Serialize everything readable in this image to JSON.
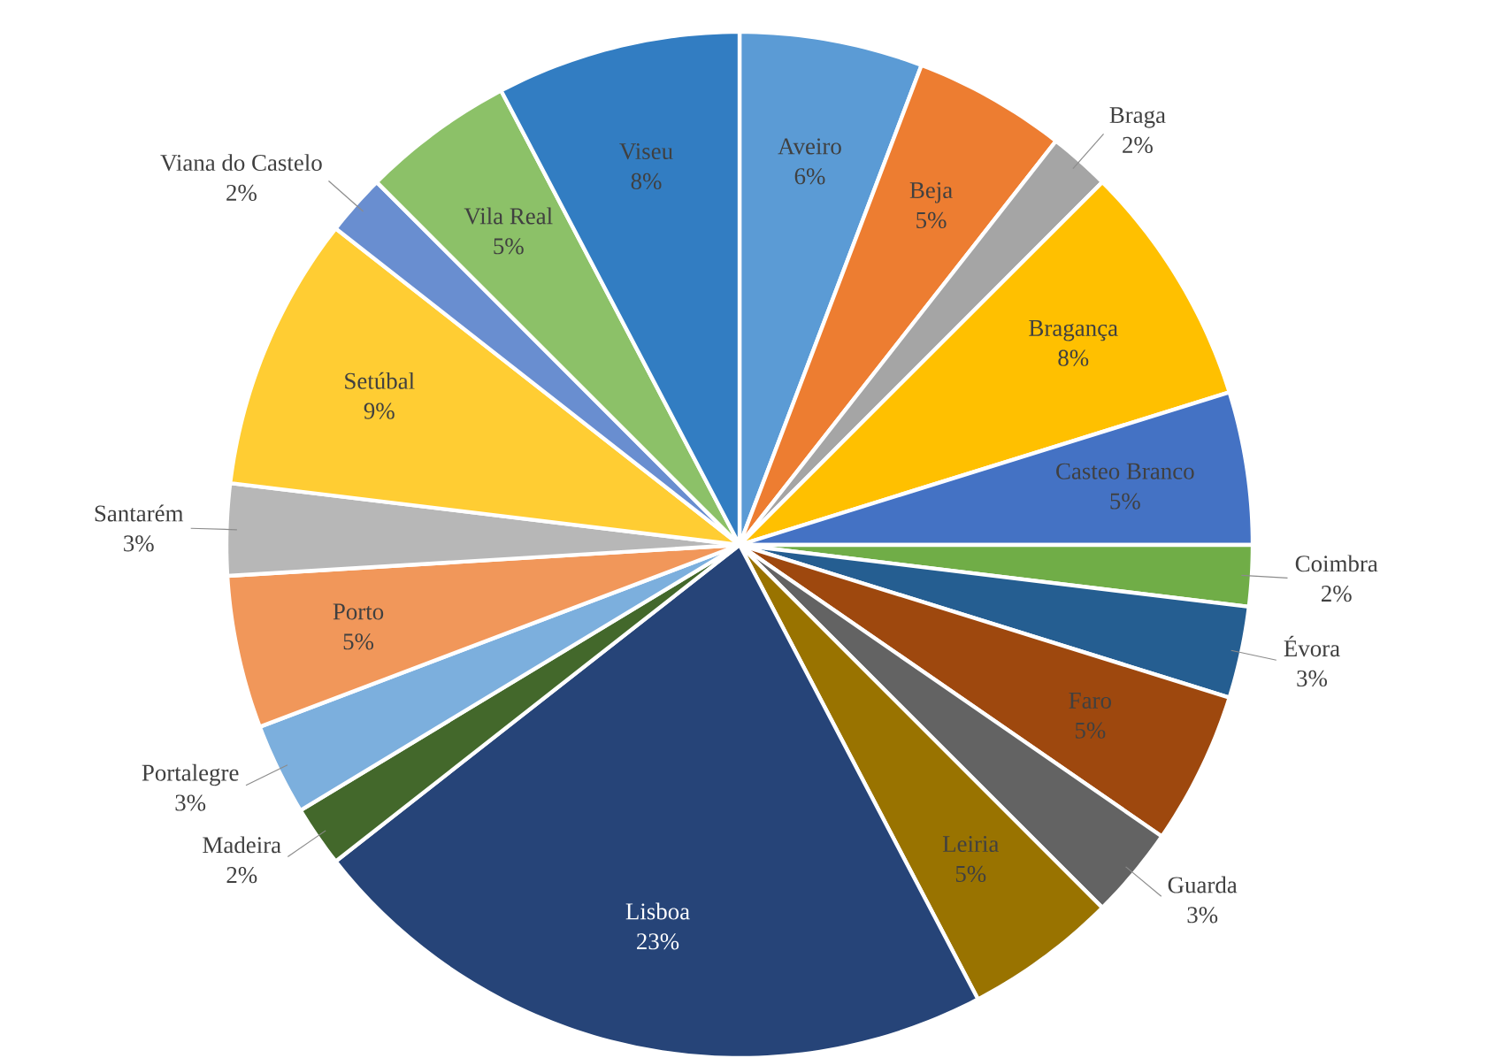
{
  "chart_data": {
    "type": "pie",
    "categories": [
      "Aveiro",
      "Beja",
      "Braga",
      "Bragança",
      "Casteo Branco",
      "Coimbra",
      "Évora",
      "Faro",
      "Guarda",
      "Leiria",
      "Lisboa",
      "Madeira",
      "Portalegre",
      "Porto",
      "Santarém",
      "Setúbal",
      "Viana do Castelo",
      "Vila Real",
      "Viseu"
    ],
    "values": [
      6,
      5,
      2,
      8,
      5,
      2,
      3,
      5,
      3,
      5,
      23,
      2,
      3,
      5,
      3,
      9,
      2,
      5,
      8
    ],
    "value_labels": [
      "6%",
      "5%",
      "2%",
      "8%",
      "5%",
      "2%",
      "3%",
      "5%",
      "3%",
      "5%",
      "23%",
      "2%",
      "3%",
      "5%",
      "3%",
      "9%",
      "2%",
      "5%",
      "8%"
    ],
    "colors": [
      "#5b9bd5",
      "#ed7d31",
      "#a5a5a5",
      "#ffc000",
      "#4472c4",
      "#70ad47",
      "#255e91",
      "#9e480e",
      "#636363",
      "#997300",
      "#264478",
      "#43682b",
      "#7cafdd",
      "#f1975a",
      "#b7b7b7",
      "#ffcd33",
      "#698ed0",
      "#8cc168",
      "#327dc2"
    ]
  }
}
